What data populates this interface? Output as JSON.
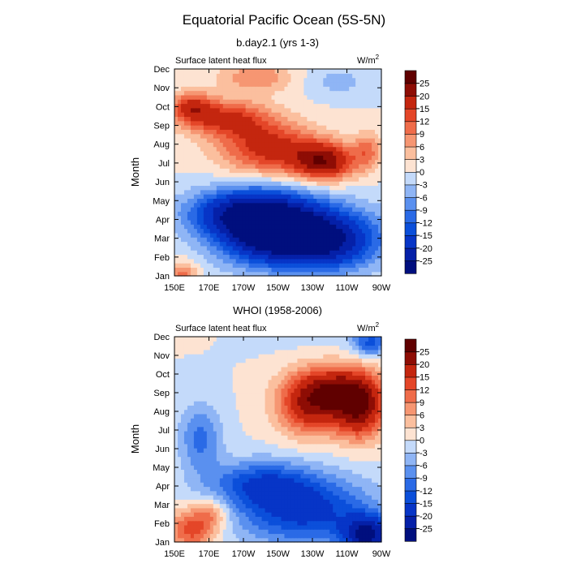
{
  "chart_data": {
    "type": "heatmap",
    "title": "Equatorial Pacific Ocean (5S-5N)",
    "panels": [
      {
        "id": "model",
        "subtitle": "b.day2.1 (yrs 1-3)",
        "left_label": "Surface latent heat flux",
        "units_label": "W/m",
        "units_sup": "2",
        "ylabel": "Month",
        "months": [
          "Jan",
          "Feb",
          "Mar",
          "Apr",
          "May",
          "Jun",
          "Jul",
          "Aug",
          "Sep",
          "Oct",
          "Nov",
          "Dec"
        ],
        "lon_ticks": [
          "150E",
          "170E",
          "170W",
          "150W",
          "130W",
          "110W",
          "90W"
        ],
        "lon_range": [
          150,
          270
        ],
        "features": [
          {
            "lon": 205,
            "month": 3.6,
            "value": -25,
            "dlon": 30,
            "dmonth": 1.8
          },
          {
            "lon": 230,
            "month": 3.2,
            "value": -18,
            "dlon": 40,
            "dmonth": 1.6
          },
          {
            "lon": 185,
            "month": 4.4,
            "value": -15,
            "dlon": 30,
            "dmonth": 1.2
          },
          {
            "lon": 240,
            "month": 2.6,
            "value": -10,
            "dlon": 25,
            "dmonth": 1.4
          },
          {
            "lon": 155,
            "month": 1.1,
            "value": 10,
            "dlon": 8,
            "dmonth": 0.7
          },
          {
            "lon": 205,
            "month": 7.8,
            "value": 17,
            "dlon": 28,
            "dmonth": 1.4
          },
          {
            "lon": 237,
            "month": 7.1,
            "value": 22,
            "dlon": 18,
            "dmonth": 1.0
          },
          {
            "lon": 180,
            "month": 9.4,
            "value": 15,
            "dlon": 25,
            "dmonth": 1.0
          },
          {
            "lon": 160,
            "month": 10.0,
            "value": 14,
            "dlon": 12,
            "dmonth": 0.8
          },
          {
            "lon": 262,
            "month": 7.7,
            "value": 9,
            "dlon": 8,
            "dmonth": 1.0
          },
          {
            "lon": 198,
            "month": 11.6,
            "value": 9,
            "dlon": 22,
            "dmonth": 0.8
          },
          {
            "lon": 245,
            "month": 11.3,
            "value": -4,
            "dlon": 20,
            "dmonth": 0.8
          }
        ]
      },
      {
        "id": "obs",
        "subtitle": "WHOI (1958-2006)",
        "left_label": "Surface latent heat flux",
        "units_label": "W/m",
        "units_sup": "2",
        "ylabel": "Month",
        "months": [
          "Jan",
          "Feb",
          "Mar",
          "Apr",
          "May",
          "Jun",
          "Jul",
          "Aug",
          "Sep",
          "Oct",
          "Nov",
          "Dec"
        ],
        "lon_ticks": [
          "150E",
          "170E",
          "170W",
          "150W",
          "130W",
          "110W",
          "90W"
        ],
        "lon_range": [
          150,
          270
        ],
        "features": [
          {
            "lon": 225,
            "month": 2.7,
            "value": -17,
            "dlon": 40,
            "dmonth": 1.8
          },
          {
            "lon": 262,
            "month": 1.4,
            "value": -25,
            "dlon": 14,
            "dmonth": 1.0
          },
          {
            "lon": 200,
            "month": 4.2,
            "value": -12,
            "dlon": 30,
            "dmonth": 1.2
          },
          {
            "lon": 165,
            "month": 6.6,
            "value": -10,
            "dlon": 12,
            "dmonth": 1.8
          },
          {
            "lon": 160,
            "month": 1.7,
            "value": 14,
            "dlon": 14,
            "dmonth": 1.1
          },
          {
            "lon": 172,
            "month": 2.6,
            "value": 8,
            "dlon": 10,
            "dmonth": 0.8
          },
          {
            "lon": 230,
            "month": 8.4,
            "value": 20,
            "dlon": 20,
            "dmonth": 1.6
          },
          {
            "lon": 258,
            "month": 8.2,
            "value": 22,
            "dlon": 14,
            "dmonth": 1.6
          },
          {
            "lon": 245,
            "month": 9.3,
            "value": 14,
            "dlon": 22,
            "dmonth": 1.2
          },
          {
            "lon": 264,
            "month": 11.6,
            "value": -12,
            "dlon": 10,
            "dmonth": 0.6
          }
        ]
      }
    ],
    "colorbar": {
      "levels": [
        -25,
        -20,
        -15,
        -12,
        -9,
        -6,
        -3,
        0,
        3,
        6,
        9,
        12,
        15,
        20,
        25
      ],
      "labels": [
        "-25",
        "-20",
        "-15",
        "-12",
        "-9",
        "-6",
        "-3",
        "0",
        "3",
        "6",
        "9",
        "12",
        "15",
        "20",
        "25"
      ],
      "colors": [
        "#000f7e",
        "#0520a8",
        "#0735c7",
        "#0b4fda",
        "#2a6ae6",
        "#5a90ef",
        "#8fb5f5",
        "#c4dafa",
        "#fde3d2",
        "#fbbf9e",
        "#f69672",
        "#ef6c4a",
        "#e44628",
        "#c4260f",
        "#8e0d05",
        "#600000"
      ]
    }
  }
}
